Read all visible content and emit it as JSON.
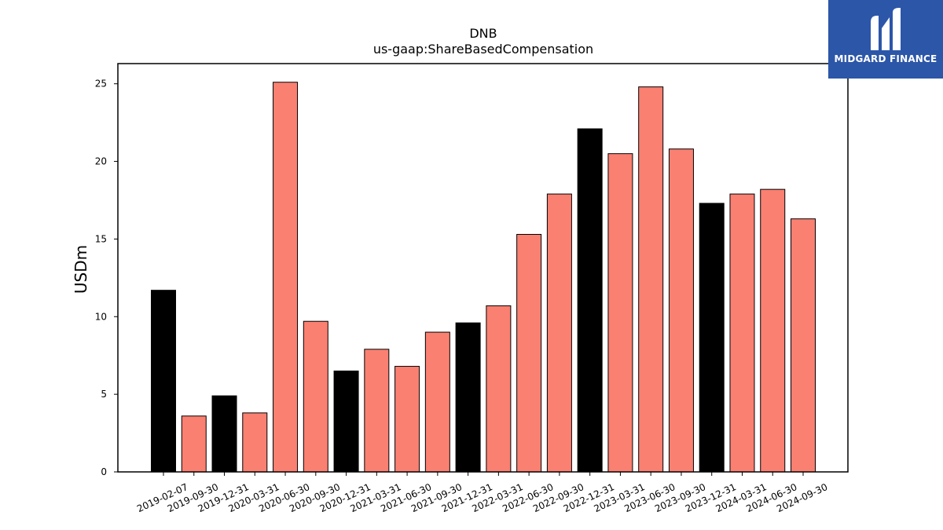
{
  "chart_data": {
    "type": "bar",
    "title": "DNB",
    "subtitle": "us-gaap:ShareBasedCompensation",
    "xlabel": "",
    "ylabel": "USDm",
    "ylim": [
      0,
      26.3
    ],
    "yticks": [
      0,
      5,
      10,
      15,
      20,
      25
    ],
    "grid": false,
    "categories": [
      "2019-02-07",
      "2019-09-30",
      "2019-12-31",
      "2020-03-31",
      "2020-06-30",
      "2020-09-30",
      "2020-12-31",
      "2021-03-31",
      "2021-06-30",
      "2021-09-30",
      "2021-12-31",
      "2022-03-31",
      "2022-06-30",
      "2022-09-30",
      "2022-12-31",
      "2023-03-31",
      "2023-06-30",
      "2023-09-30",
      "2023-12-31",
      "2024-03-31",
      "2024-06-30",
      "2024-09-30"
    ],
    "values": [
      11.7,
      3.6,
      4.9,
      3.8,
      25.1,
      9.7,
      6.5,
      7.9,
      6.8,
      9.0,
      9.6,
      10.7,
      15.3,
      17.9,
      22.1,
      20.5,
      24.8,
      20.8,
      17.3,
      17.9,
      18.2,
      16.3
    ],
    "period": [
      "annual",
      "quarter",
      "annual",
      "quarter",
      "quarter",
      "quarter",
      "annual",
      "quarter",
      "quarter",
      "quarter",
      "annual",
      "quarter",
      "quarter",
      "quarter",
      "annual",
      "quarter",
      "quarter",
      "quarter",
      "annual",
      "quarter",
      "quarter",
      "quarter"
    ],
    "colors": {
      "annual": "#000000",
      "quarter": "#fa8072",
      "edge": "#000000"
    }
  },
  "logo": {
    "text": "MIDGARD FINANCE",
    "background": "#2c56a8"
  }
}
